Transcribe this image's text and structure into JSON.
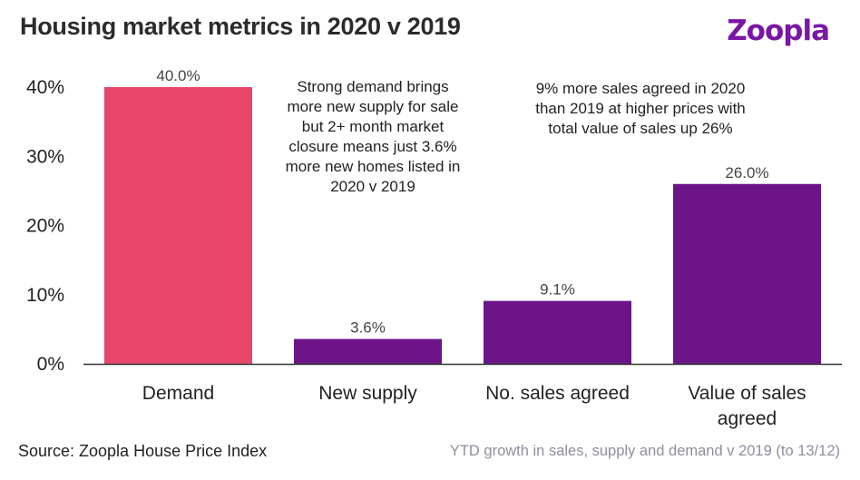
{
  "header": {
    "title": "Housing market metrics in 2020 v 2019",
    "logo_text": "Zoopla"
  },
  "annotations": [
    "Strong demand brings more new supply for sale but 2+ month market closure means just 3.6% more new homes listed in 2020 v 2019",
    "9% more sales agreed in 2020 than 2019 at higher prices with total value of sales up 26%"
  ],
  "footer": {
    "source": "Source: Zoopla House Price Index",
    "note": "YTD growth in sales, supply and demand v 2019 (to 13/12)"
  },
  "chart_data": {
    "type": "bar",
    "categories": [
      "Demand",
      "New supply",
      "No. sales agreed",
      "Value of sales agreed"
    ],
    "category_lines": [
      [
        "Demand"
      ],
      [
        "New supply"
      ],
      [
        "No. sales agreed"
      ],
      [
        "Value of sales",
        "agreed"
      ]
    ],
    "values": [
      40.0,
      3.6,
      9.1,
      26.0
    ],
    "data_labels": [
      "40.0%",
      "3.6%",
      "9.1%",
      "26.0%"
    ],
    "bar_colors": [
      "#e8476a",
      "#6c1488",
      "#6c1488",
      "#6c1488"
    ],
    "ylim": [
      0,
      40
    ],
    "yticks": [
      0,
      10,
      20,
      30,
      40
    ],
    "ytick_labels": [
      "0%",
      "10%",
      "20%",
      "30%",
      "40%"
    ],
    "grid": false,
    "xlabel": "",
    "ylabel": ""
  },
  "colors": {
    "demand": "#e8476a",
    "purple": "#6c1488",
    "logo": "#7a16a6",
    "note": "#8e8e9e"
  }
}
